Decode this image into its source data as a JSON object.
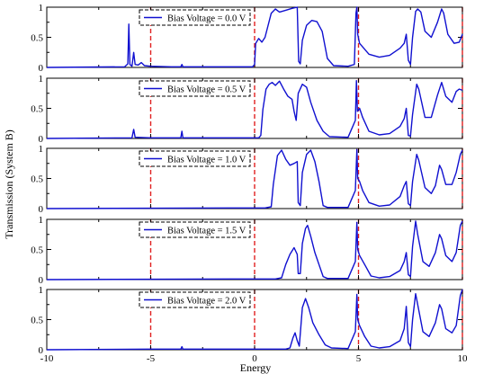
{
  "chart_data": {
    "type": "line",
    "xlabel": "Energy",
    "ylabel": "Transmission (System B)",
    "xlim": [
      -10,
      10
    ],
    "ylim": [
      0,
      1
    ],
    "xticks": [
      -10,
      -5,
      0,
      5,
      10
    ],
    "yticks": [
      0,
      0.5,
      1
    ],
    "line_color": "#1010d0",
    "marker_line_color": "#e02020",
    "vertical_markers": [
      -5,
      0,
      5,
      10
    ],
    "legend_position": "top-center",
    "panels": [
      {
        "legend": "Bias Voltage = 0.0 V",
        "points": [
          [
            -10,
            0
          ],
          [
            -6.25,
            0.01
          ],
          [
            -6.1,
            0.06
          ],
          [
            -6.05,
            0.72
          ],
          [
            -6.0,
            0.05
          ],
          [
            -5.9,
            0.02
          ],
          [
            -5.82,
            0.25
          ],
          [
            -5.75,
            0.05
          ],
          [
            -5.6,
            0.04
          ],
          [
            -5.45,
            0.08
          ],
          [
            -5.3,
            0.03
          ],
          [
            -5.0,
            0.02
          ],
          [
            -4.0,
            0.01
          ],
          [
            -3.55,
            0.01
          ],
          [
            -3.5,
            0.05
          ],
          [
            -3.45,
            0.01
          ],
          [
            -1.0,
            0.01
          ],
          [
            -0.1,
            0.01
          ],
          [
            0.0,
            0.05
          ],
          [
            0.05,
            0.4
          ],
          [
            0.2,
            0.48
          ],
          [
            0.35,
            0.42
          ],
          [
            0.5,
            0.5
          ],
          [
            0.8,
            0.9
          ],
          [
            1.0,
            0.97
          ],
          [
            1.2,
            0.92
          ],
          [
            1.5,
            0.95
          ],
          [
            1.8,
            0.98
          ],
          [
            2.05,
            1.0
          ],
          [
            2.12,
            0.1
          ],
          [
            2.2,
            0.06
          ],
          [
            2.3,
            0.45
          ],
          [
            2.5,
            0.7
          ],
          [
            2.75,
            0.78
          ],
          [
            3.0,
            0.76
          ],
          [
            3.25,
            0.6
          ],
          [
            3.5,
            0.15
          ],
          [
            3.8,
            0.03
          ],
          [
            4.5,
            0.02
          ],
          [
            4.8,
            0.05
          ],
          [
            4.88,
            0.9
          ],
          [
            4.92,
            1.0
          ],
          [
            4.96,
            0.55
          ],
          [
            5.05,
            0.4
          ],
          [
            5.5,
            0.22
          ],
          [
            6.0,
            0.17
          ],
          [
            6.5,
            0.2
          ],
          [
            7.0,
            0.32
          ],
          [
            7.2,
            0.4
          ],
          [
            7.3,
            0.55
          ],
          [
            7.4,
            0.12
          ],
          [
            7.5,
            0.05
          ],
          [
            7.6,
            0.5
          ],
          [
            7.75,
            0.93
          ],
          [
            7.85,
            0.97
          ],
          [
            8.0,
            0.92
          ],
          [
            8.2,
            0.6
          ],
          [
            8.5,
            0.5
          ],
          [
            8.8,
            0.75
          ],
          [
            9.0,
            0.97
          ],
          [
            9.1,
            0.9
          ],
          [
            9.3,
            0.55
          ],
          [
            9.6,
            0.4
          ],
          [
            9.85,
            0.42
          ],
          [
            10.0,
            0.55
          ]
        ]
      },
      {
        "legend": "Bias Voltage = 0.5 V",
        "points": [
          [
            -10,
            0
          ],
          [
            -5.9,
            0.01
          ],
          [
            -5.82,
            0.15
          ],
          [
            -5.75,
            0.02
          ],
          [
            -5.0,
            0.01
          ],
          [
            -3.55,
            0.01
          ],
          [
            -3.5,
            0.12
          ],
          [
            -3.45,
            0.01
          ],
          [
            -1.0,
            0.01
          ],
          [
            0.2,
            0.01
          ],
          [
            0.3,
            0.05
          ],
          [
            0.4,
            0.48
          ],
          [
            0.55,
            0.82
          ],
          [
            0.7,
            0.9
          ],
          [
            0.85,
            0.93
          ],
          [
            1.0,
            0.88
          ],
          [
            1.2,
            0.95
          ],
          [
            1.4,
            0.82
          ],
          [
            1.6,
            0.7
          ],
          [
            1.8,
            0.65
          ],
          [
            1.9,
            0.45
          ],
          [
            2.0,
            0.3
          ],
          [
            2.1,
            0.75
          ],
          [
            2.3,
            0.9
          ],
          [
            2.5,
            0.85
          ],
          [
            2.7,
            0.6
          ],
          [
            3.0,
            0.3
          ],
          [
            3.3,
            0.12
          ],
          [
            3.6,
            0.03
          ],
          [
            4.5,
            0.02
          ],
          [
            4.85,
            0.3
          ],
          [
            4.9,
            0.96
          ],
          [
            4.95,
            0.45
          ],
          [
            5.05,
            0.5
          ],
          [
            5.2,
            0.35
          ],
          [
            5.5,
            0.12
          ],
          [
            6.0,
            0.06
          ],
          [
            6.5,
            0.08
          ],
          [
            7.0,
            0.2
          ],
          [
            7.2,
            0.33
          ],
          [
            7.3,
            0.5
          ],
          [
            7.4,
            0.05
          ],
          [
            7.5,
            0.04
          ],
          [
            7.6,
            0.4
          ],
          [
            7.8,
            0.9
          ],
          [
            7.9,
            0.82
          ],
          [
            8.2,
            0.35
          ],
          [
            8.5,
            0.35
          ],
          [
            8.8,
            0.72
          ],
          [
            9.0,
            0.93
          ],
          [
            9.2,
            0.7
          ],
          [
            9.5,
            0.6
          ],
          [
            9.7,
            0.78
          ],
          [
            9.85,
            0.82
          ],
          [
            10.0,
            0.8
          ]
        ]
      },
      {
        "legend": "Bias Voltage = 1.0 V",
        "points": [
          [
            -10,
            0
          ],
          [
            -1.0,
            0.01
          ],
          [
            0.5,
            0.01
          ],
          [
            0.8,
            0.03
          ],
          [
            0.9,
            0.4
          ],
          [
            1.1,
            0.88
          ],
          [
            1.3,
            0.97
          ],
          [
            1.5,
            0.82
          ],
          [
            1.7,
            0.72
          ],
          [
            1.9,
            0.75
          ],
          [
            2.05,
            0.78
          ],
          [
            2.1,
            0.1
          ],
          [
            2.2,
            0.05
          ],
          [
            2.3,
            0.6
          ],
          [
            2.5,
            0.9
          ],
          [
            2.7,
            0.97
          ],
          [
            2.9,
            0.78
          ],
          [
            3.1,
            0.45
          ],
          [
            3.3,
            0.05
          ],
          [
            3.5,
            0.02
          ],
          [
            4.5,
            0.02
          ],
          [
            4.85,
            0.3
          ],
          [
            4.92,
            0.98
          ],
          [
            4.96,
            0.5
          ],
          [
            5.05,
            0.45
          ],
          [
            5.2,
            0.3
          ],
          [
            5.5,
            0.1
          ],
          [
            6.0,
            0.04
          ],
          [
            6.5,
            0.06
          ],
          [
            7.0,
            0.2
          ],
          [
            7.2,
            0.38
          ],
          [
            7.3,
            0.45
          ],
          [
            7.4,
            0.08
          ],
          [
            7.5,
            0.05
          ],
          [
            7.6,
            0.45
          ],
          [
            7.8,
            0.9
          ],
          [
            7.9,
            0.8
          ],
          [
            8.2,
            0.35
          ],
          [
            8.5,
            0.25
          ],
          [
            8.7,
            0.38
          ],
          [
            8.9,
            0.72
          ],
          [
            9.0,
            0.65
          ],
          [
            9.2,
            0.4
          ],
          [
            9.5,
            0.4
          ],
          [
            9.7,
            0.6
          ],
          [
            9.9,
            0.9
          ],
          [
            10.0,
            0.97
          ]
        ]
      },
      {
        "legend": "Bias Voltage = 1.5 V",
        "points": [
          [
            -10,
            0
          ],
          [
            -1.0,
            0.01
          ],
          [
            1.0,
            0.01
          ],
          [
            1.3,
            0.03
          ],
          [
            1.5,
            0.25
          ],
          [
            1.7,
            0.42
          ],
          [
            1.9,
            0.53
          ],
          [
            2.05,
            0.42
          ],
          [
            2.1,
            0.1
          ],
          [
            2.2,
            0.1
          ],
          [
            2.3,
            0.6
          ],
          [
            2.45,
            0.85
          ],
          [
            2.55,
            0.9
          ],
          [
            2.7,
            0.72
          ],
          [
            2.9,
            0.45
          ],
          [
            3.1,
            0.25
          ],
          [
            3.3,
            0.05
          ],
          [
            3.5,
            0.02
          ],
          [
            4.5,
            0.02
          ],
          [
            4.85,
            0.3
          ],
          [
            4.92,
            0.95
          ],
          [
            4.96,
            0.5
          ],
          [
            5.05,
            0.4
          ],
          [
            5.3,
            0.25
          ],
          [
            5.6,
            0.06
          ],
          [
            6.0,
            0.03
          ],
          [
            6.5,
            0.05
          ],
          [
            7.0,
            0.15
          ],
          [
            7.2,
            0.3
          ],
          [
            7.3,
            0.45
          ],
          [
            7.4,
            0.08
          ],
          [
            7.5,
            0.05
          ],
          [
            7.6,
            0.55
          ],
          [
            7.75,
            0.97
          ],
          [
            7.85,
            0.75
          ],
          [
            8.1,
            0.3
          ],
          [
            8.4,
            0.22
          ],
          [
            8.7,
            0.45
          ],
          [
            8.9,
            0.75
          ],
          [
            9.0,
            0.68
          ],
          [
            9.2,
            0.4
          ],
          [
            9.5,
            0.3
          ],
          [
            9.7,
            0.45
          ],
          [
            9.9,
            0.9
          ],
          [
            10.0,
            0.97
          ]
        ]
      },
      {
        "legend": "Bias Voltage = 2.0 V",
        "points": [
          [
            -10,
            0
          ],
          [
            -5.0,
            0.01
          ],
          [
            -4.0,
            0.01
          ],
          [
            -3.55,
            0.01
          ],
          [
            -3.5,
            0.05
          ],
          [
            -3.45,
            0.01
          ],
          [
            -1.0,
            0.01
          ],
          [
            1.5,
            0.01
          ],
          [
            1.7,
            0.03
          ],
          [
            1.85,
            0.2
          ],
          [
            1.95,
            0.28
          ],
          [
            2.05,
            0.15
          ],
          [
            2.15,
            0.06
          ],
          [
            2.3,
            0.7
          ],
          [
            2.45,
            0.85
          ],
          [
            2.6,
            0.7
          ],
          [
            2.8,
            0.45
          ],
          [
            3.1,
            0.25
          ],
          [
            3.4,
            0.08
          ],
          [
            3.7,
            0.03
          ],
          [
            4.5,
            0.02
          ],
          [
            4.85,
            0.3
          ],
          [
            4.92,
            0.92
          ],
          [
            4.96,
            0.5
          ],
          [
            5.05,
            0.4
          ],
          [
            5.3,
            0.22
          ],
          [
            5.6,
            0.06
          ],
          [
            6.0,
            0.03
          ],
          [
            6.5,
            0.05
          ],
          [
            7.0,
            0.15
          ],
          [
            7.2,
            0.35
          ],
          [
            7.3,
            0.72
          ],
          [
            7.4,
            0.12
          ],
          [
            7.5,
            0.05
          ],
          [
            7.6,
            0.5
          ],
          [
            7.75,
            0.93
          ],
          [
            7.85,
            0.75
          ],
          [
            8.1,
            0.3
          ],
          [
            8.4,
            0.22
          ],
          [
            8.7,
            0.45
          ],
          [
            8.9,
            0.75
          ],
          [
            9.0,
            0.68
          ],
          [
            9.2,
            0.35
          ],
          [
            9.5,
            0.28
          ],
          [
            9.7,
            0.4
          ],
          [
            9.9,
            0.9
          ],
          [
            10.0,
            1.0
          ]
        ]
      }
    ]
  }
}
